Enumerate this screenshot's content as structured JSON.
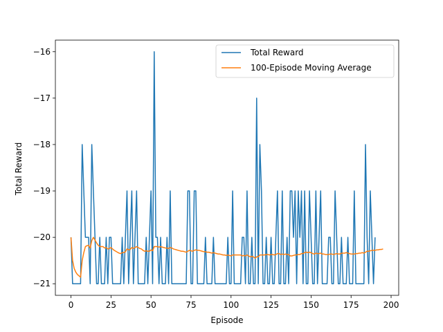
{
  "chart_data": {
    "type": "line",
    "title": "",
    "xlabel": "Episode",
    "ylabel": "Total Reward",
    "xlim": [
      -9.75,
      204.75
    ],
    "ylim": [
      -21.25,
      -15.75
    ],
    "xticks": [
      0,
      25,
      50,
      75,
      100,
      125,
      150,
      175,
      200
    ],
    "yticks": [
      -21,
      -20,
      -19,
      -18,
      -17,
      -16
    ],
    "xtick_labels": [
      "0",
      "25",
      "50",
      "75",
      "100",
      "125",
      "150",
      "175",
      "200"
    ],
    "ytick_labels": [
      "−21",
      "−20",
      "−19",
      "−18",
      "−17",
      "−16"
    ],
    "grid": false,
    "legend_position": "top-right",
    "series": [
      {
        "name": "Total Reward",
        "color": "#1f77b4",
        "values": [
          -20,
          -21,
          -21,
          -21,
          -21,
          -21,
          -21,
          -18,
          -19,
          -20,
          -20,
          -20,
          -21,
          -18,
          -19,
          -20,
          -21,
          -21,
          -20,
          -21,
          -21,
          -21,
          -20,
          -21,
          -20,
          -20,
          -21,
          -21,
          -21,
          -21,
          -21,
          -21,
          -20,
          -21,
          -20,
          -19,
          -21,
          -20,
          -19,
          -21,
          -20,
          -19,
          -21,
          -21,
          -21,
          -21,
          -21,
          -20,
          -21,
          -20,
          -19,
          -21,
          -16,
          -20,
          -20,
          -21,
          -20,
          -21,
          -21,
          -21,
          -20,
          -21,
          -19,
          -21,
          -21,
          -21,
          -21,
          -21,
          -21,
          -21,
          -21,
          -21,
          -21,
          -19,
          -19,
          -21,
          -21,
          -19,
          -19,
          -21,
          -21,
          -21,
          -21,
          -21,
          -20,
          -21,
          -21,
          -21,
          -21,
          -20,
          -21,
          -21,
          -21,
          -21,
          -21,
          -21,
          -21,
          -21,
          -20,
          -21,
          -21,
          -19,
          -21,
          -21,
          -21,
          -21,
          -21,
          -20,
          -20,
          -21,
          -19,
          -21,
          -21,
          -20,
          -21,
          -21,
          -17,
          -21,
          -18,
          -19,
          -21,
          -21,
          -20,
          -21,
          -21,
          -20,
          -21,
          -21,
          -20,
          -19,
          -21,
          -21,
          -19,
          -21,
          -21,
          -20,
          -21,
          -19,
          -19,
          -20,
          -19,
          -21,
          -19,
          -20,
          -19,
          -21,
          -19,
          -21,
          -21,
          -19,
          -20,
          -21,
          -21,
          -19,
          -21,
          -20,
          -19,
          -21,
          -21,
          -21,
          -21,
          -20,
          -20,
          -21,
          -21,
          -19,
          -20,
          -21,
          -21,
          -20,
          -21,
          -21,
          -21,
          -20,
          -21,
          -21,
          -21,
          -19,
          -21,
          -21,
          -21,
          -21,
          -21,
          -21,
          -18,
          -20,
          -21,
          -19,
          -20,
          -21,
          -20
        ],
        "x_start": 0
      },
      {
        "name": "100-Episode Moving Average",
        "color": "#ff7f0e",
        "points": [
          [
            0,
            -20
          ],
          [
            1,
            -20.5
          ],
          [
            2,
            -20.67
          ],
          [
            3,
            -20.75
          ],
          [
            4,
            -20.8
          ],
          [
            5,
            -20.83
          ],
          [
            6,
            -20.86
          ],
          [
            7,
            -20.5
          ],
          [
            8,
            -20.33
          ],
          [
            9,
            -20.2
          ],
          [
            10,
            -20.18
          ],
          [
            11,
            -20.17
          ],
          [
            12,
            -20.23
          ],
          [
            13,
            -20.07
          ],
          [
            14,
            -20.0
          ],
          [
            15,
            -20.06
          ],
          [
            16,
            -20.12
          ],
          [
            17,
            -20.17
          ],
          [
            18,
            -20.2
          ],
          [
            19,
            -20.2
          ],
          [
            20,
            -20.2
          ],
          [
            21,
            -20.23
          ],
          [
            22,
            -20.22
          ],
          [
            23,
            -20.25
          ],
          [
            24,
            -20.24
          ],
          [
            25,
            -20.22
          ],
          [
            26,
            -20.25
          ],
          [
            27,
            -20.28
          ],
          [
            28,
            -20.3
          ],
          [
            29,
            -20.32
          ],
          [
            30,
            -20.34
          ],
          [
            31,
            -20.35
          ],
          [
            32,
            -20.33
          ],
          [
            33,
            -20.33
          ],
          [
            34,
            -20.31
          ],
          [
            35,
            -20.25
          ],
          [
            36,
            -20.27
          ],
          [
            37,
            -20.26
          ],
          [
            38,
            -20.22
          ],
          [
            39,
            -20.24
          ],
          [
            40,
            -20.22
          ],
          [
            41,
            -20.2
          ],
          [
            42,
            -20.22
          ],
          [
            43,
            -20.24
          ],
          [
            44,
            -20.25
          ],
          [
            45,
            -20.28
          ],
          [
            46,
            -20.3
          ],
          [
            47,
            -20.29
          ],
          [
            48,
            -20.3
          ],
          [
            49,
            -20.3
          ],
          [
            50,
            -20.27
          ],
          [
            51,
            -20.29
          ],
          [
            52,
            -20.2
          ],
          [
            53,
            -20.2
          ],
          [
            54,
            -20.2
          ],
          [
            55,
            -20.21
          ],
          [
            56,
            -20.2
          ],
          [
            57,
            -20.21
          ],
          [
            58,
            -20.22
          ],
          [
            59,
            -20.23
          ],
          [
            60,
            -20.23
          ],
          [
            61,
            -20.24
          ],
          [
            62,
            -20.22
          ],
          [
            63,
            -20.23
          ],
          [
            64,
            -20.25
          ],
          [
            65,
            -20.26
          ],
          [
            66,
            -20.27
          ],
          [
            67,
            -20.28
          ],
          [
            68,
            -20.29
          ],
          [
            69,
            -20.3
          ],
          [
            70,
            -20.3
          ],
          [
            71,
            -20.31
          ],
          [
            72,
            -20.32
          ],
          [
            73,
            -20.3
          ],
          [
            74,
            -20.28
          ],
          [
            75,
            -20.29
          ],
          [
            76,
            -20.3
          ],
          [
            77,
            -20.28
          ],
          [
            78,
            -20.27
          ],
          [
            79,
            -20.28
          ],
          [
            80,
            -20.28
          ],
          [
            81,
            -20.29
          ],
          [
            82,
            -20.3
          ],
          [
            83,
            -20.31
          ],
          [
            84,
            -20.31
          ],
          [
            85,
            -20.32
          ],
          [
            86,
            -20.32
          ],
          [
            87,
            -20.33
          ],
          [
            88,
            -20.34
          ],
          [
            89,
            -20.33
          ],
          [
            90,
            -20.34
          ],
          [
            91,
            -20.35
          ],
          [
            92,
            -20.36
          ],
          [
            93,
            -20.36
          ],
          [
            94,
            -20.37
          ],
          [
            95,
            -20.38
          ],
          [
            96,
            -20.38
          ],
          [
            97,
            -20.39
          ],
          [
            98,
            -20.38
          ],
          [
            99,
            -20.39
          ],
          [
            100,
            -20.4
          ],
          [
            101,
            -20.38
          ],
          [
            102,
            -20.38
          ],
          [
            103,
            -20.38
          ],
          [
            104,
            -20.38
          ],
          [
            105,
            -20.38
          ],
          [
            106,
            -20.38
          ],
          [
            107,
            -20.4
          ],
          [
            108,
            -20.39
          ],
          [
            109,
            -20.4
          ],
          [
            110,
            -20.38
          ],
          [
            111,
            -20.4
          ],
          [
            112,
            -20.42
          ],
          [
            113,
            -20.41
          ],
          [
            114,
            -20.42
          ],
          [
            115,
            -20.45
          ],
          [
            116,
            -20.42
          ],
          [
            117,
            -20.42
          ],
          [
            118,
            -20.38
          ],
          [
            119,
            -20.38
          ],
          [
            120,
            -20.38
          ],
          [
            121,
            -20.38
          ],
          [
            122,
            -20.37
          ],
          [
            123,
            -20.37
          ],
          [
            124,
            -20.38
          ],
          [
            125,
            -20.37
          ],
          [
            126,
            -20.37
          ],
          [
            127,
            -20.38
          ],
          [
            128,
            -20.37
          ],
          [
            129,
            -20.35
          ],
          [
            130,
            -20.35
          ],
          [
            131,
            -20.37
          ],
          [
            132,
            -20.36
          ],
          [
            133,
            -20.37
          ],
          [
            134,
            -20.36
          ],
          [
            135,
            -20.37
          ],
          [
            136,
            -20.37
          ],
          [
            137,
            -20.4
          ],
          [
            138,
            -20.4
          ],
          [
            139,
            -20.39
          ],
          [
            140,
            -20.38
          ],
          [
            141,
            -20.38
          ],
          [
            142,
            -20.37
          ],
          [
            143,
            -20.37
          ],
          [
            144,
            -20.35
          ],
          [
            145,
            -20.35
          ],
          [
            146,
            -20.33
          ],
          [
            147,
            -20.32
          ],
          [
            148,
            -20.33
          ],
          [
            149,
            -20.32
          ],
          [
            150,
            -20.33
          ],
          [
            151,
            -20.35
          ],
          [
            152,
            -20.36
          ],
          [
            153,
            -20.34
          ],
          [
            154,
            -20.35
          ],
          [
            155,
            -20.35
          ],
          [
            156,
            -20.34
          ],
          [
            157,
            -20.36
          ],
          [
            158,
            -20.36
          ],
          [
            159,
            -20.37
          ],
          [
            160,
            -20.37
          ],
          [
            161,
            -20.37
          ],
          [
            162,
            -20.36
          ],
          [
            163,
            -20.36
          ],
          [
            164,
            -20.37
          ],
          [
            165,
            -20.36
          ],
          [
            166,
            -20.35
          ],
          [
            167,
            -20.36
          ],
          [
            168,
            -20.36
          ],
          [
            169,
            -20.34
          ],
          [
            170,
            -20.34
          ],
          [
            171,
            -20.34
          ],
          [
            172,
            -20.33
          ],
          [
            173,
            -20.34
          ],
          [
            174,
            -20.35
          ],
          [
            175,
            -20.36
          ],
          [
            176,
            -20.36
          ],
          [
            177,
            -20.36
          ],
          [
            178,
            -20.35
          ],
          [
            179,
            -20.35
          ],
          [
            180,
            -20.34
          ],
          [
            181,
            -20.34
          ],
          [
            182,
            -20.33
          ],
          [
            183,
            -20.34
          ],
          [
            184,
            -20.32
          ],
          [
            185,
            -20.3
          ],
          [
            186,
            -20.3
          ],
          [
            187,
            -20.29
          ],
          [
            188,
            -20.28
          ],
          [
            189,
            -20.28
          ],
          [
            190,
            -20.28
          ],
          [
            191,
            -20.27
          ],
          [
            192,
            -20.27
          ],
          [
            193,
            -20.26
          ],
          [
            194,
            -20.26
          ],
          [
            195,
            -20.25
          ]
        ]
      }
    ]
  }
}
